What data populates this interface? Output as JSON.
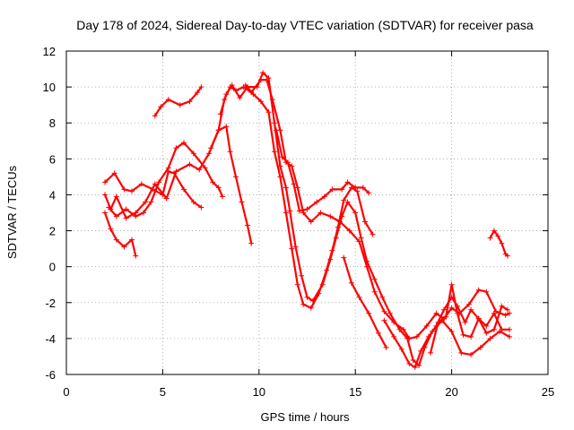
{
  "chart_data": {
    "type": "scatter",
    "title": "Day 178 of 2024, Sidereal Day-to-day VTEC variation (SDTVAR) for receiver pasa",
    "xlabel": "GPS time / hours",
    "ylabel": "SDTVAR / TECUs",
    "xlim": [
      0,
      25
    ],
    "ylim": [
      -6,
      12
    ],
    "xticks": [
      "0",
      "5",
      "10",
      "15",
      "20",
      "25"
    ],
    "yticks": [
      "-6",
      "-4",
      "-2",
      "0",
      "2",
      "4",
      "6",
      "8",
      "10",
      "12"
    ],
    "grid": true,
    "marker": "plus",
    "color": "#ff0000",
    "series": [
      {
        "name": "track-1",
        "points": [
          [
            2.0,
            4.0
          ],
          [
            2.3,
            3.2
          ],
          [
            2.6,
            3.9
          ],
          [
            3.1,
            2.7
          ],
          [
            3.6,
            3.0
          ],
          [
            4.1,
            3.6
          ],
          [
            4.6,
            4.6
          ],
          [
            5.2,
            3.8
          ],
          [
            5.7,
            5.3
          ],
          [
            6.4,
            5.7
          ],
          [
            6.9,
            5.4
          ],
          [
            7.4,
            6.3
          ],
          [
            7.9,
            7.6
          ],
          [
            8.3,
            7.8
          ],
          [
            8.5,
            6.4
          ],
          [
            8.8,
            5.0
          ],
          [
            9.1,
            3.6
          ],
          [
            9.4,
            2.3
          ],
          [
            9.6,
            1.3
          ]
        ]
      },
      {
        "name": "track-2",
        "points": [
          [
            2.0,
            3.0
          ],
          [
            2.3,
            2.1
          ],
          [
            2.6,
            1.5
          ],
          [
            3.0,
            1.1
          ],
          [
            3.4,
            1.5
          ],
          [
            3.6,
            0.6
          ]
        ]
      },
      {
        "name": "track-3",
        "points": [
          [
            2.0,
            4.7
          ],
          [
            2.5,
            5.2
          ],
          [
            3.0,
            4.3
          ],
          [
            3.4,
            4.2
          ],
          [
            3.9,
            4.6
          ],
          [
            4.5,
            4.3
          ],
          [
            5.0,
            4.0
          ],
          [
            5.3,
            5.3
          ],
          [
            5.6,
            5.2
          ],
          [
            6.1,
            4.3
          ],
          [
            6.6,
            3.6
          ],
          [
            7.0,
            3.3
          ]
        ]
      },
      {
        "name": "track-4",
        "points": [
          [
            2.2,
            3.3
          ],
          [
            2.6,
            2.8
          ],
          [
            3.1,
            3.2
          ],
          [
            3.6,
            2.8
          ],
          [
            4.0,
            3.0
          ],
          [
            4.4,
            3.6
          ],
          [
            4.8,
            4.7
          ],
          [
            5.3,
            5.5
          ],
          [
            5.7,
            6.6
          ],
          [
            6.1,
            6.9
          ],
          [
            6.6,
            6.3
          ],
          [
            7.2,
            5.5
          ],
          [
            7.6,
            4.7
          ],
          [
            7.9,
            4.4
          ],
          [
            8.1,
            3.9
          ]
        ]
      },
      {
        "name": "track-5",
        "points": [
          [
            4.6,
            8.4
          ],
          [
            4.9,
            8.9
          ],
          [
            5.3,
            9.3
          ],
          [
            5.9,
            9.0
          ],
          [
            6.4,
            9.2
          ],
          [
            6.8,
            9.7
          ],
          [
            7.0,
            10.0
          ]
        ]
      },
      {
        "name": "track-6",
        "points": [
          [
            7.5,
            6.6
          ],
          [
            7.9,
            7.6
          ],
          [
            8.2,
            9.3
          ],
          [
            8.5,
            10.0
          ],
          [
            8.8,
            9.8
          ],
          [
            9.2,
            10.0
          ],
          [
            9.6,
            9.7
          ],
          [
            10.1,
            10.4
          ],
          [
            10.4,
            10.4
          ],
          [
            10.7,
            9.3
          ],
          [
            11.1,
            7.6
          ],
          [
            11.4,
            5.8
          ],
          [
            11.7,
            5.6
          ],
          [
            12.0,
            4.4
          ],
          [
            12.3,
            3.0
          ],
          [
            12.7,
            2.5
          ],
          [
            13.2,
            3.0
          ],
          [
            13.7,
            2.8
          ],
          [
            14.2,
            2.5
          ],
          [
            14.7,
            2.0
          ],
          [
            15.2,
            1.4
          ],
          [
            15.6,
            0.0
          ],
          [
            16.0,
            -1.4
          ],
          [
            16.5,
            -2.5
          ],
          [
            17.0,
            -3.1
          ],
          [
            17.5,
            -3.5
          ],
          [
            17.8,
            -4.0
          ],
          [
            18.2,
            -3.9
          ],
          [
            18.7,
            -3.3
          ],
          [
            19.2,
            -2.6
          ],
          [
            19.6,
            -2.9
          ],
          [
            20.0,
            -2.3
          ],
          [
            20.4,
            -2.6
          ],
          [
            20.9,
            -2.1
          ],
          [
            21.4,
            -1.3
          ],
          [
            21.8,
            -1.4
          ],
          [
            22.3,
            -2.5
          ],
          [
            22.8,
            -2.7
          ],
          [
            23.0,
            -2.6
          ]
        ]
      },
      {
        "name": "track-7",
        "points": [
          [
            8.0,
            8.5
          ],
          [
            8.3,
            9.6
          ],
          [
            8.6,
            10.1
          ],
          [
            9.0,
            9.4
          ],
          [
            9.4,
            10.0
          ],
          [
            9.9,
            10.0
          ],
          [
            10.2,
            10.8
          ],
          [
            10.5,
            10.5
          ],
          [
            10.8,
            8.0
          ],
          [
            11.1,
            5.6
          ],
          [
            11.4,
            4.4
          ],
          [
            11.6,
            3.1
          ],
          [
            11.9,
            1.1
          ],
          [
            12.2,
            -0.5
          ],
          [
            12.5,
            -1.7
          ],
          [
            12.8,
            -1.9
          ],
          [
            13.3,
            -1.0
          ],
          [
            13.7,
            0.4
          ],
          [
            14.0,
            1.6
          ],
          [
            14.3,
            2.8
          ],
          [
            14.6,
            3.6
          ],
          [
            15.0,
            3.0
          ],
          [
            15.3,
            1.6
          ],
          [
            15.6,
            0.3
          ],
          [
            16.0,
            -0.7
          ],
          [
            16.4,
            -1.7
          ],
          [
            16.8,
            -2.6
          ],
          [
            17.3,
            -3.5
          ],
          [
            17.7,
            -4.0
          ],
          [
            18.0,
            -5.2
          ],
          [
            18.3,
            -5.5
          ],
          [
            18.6,
            -4.5
          ],
          [
            19.0,
            -3.6
          ],
          [
            19.5,
            -3.0
          ],
          [
            20.0,
            -3.6
          ],
          [
            20.5,
            -4.8
          ],
          [
            21.0,
            -4.9
          ],
          [
            21.5,
            -4.5
          ],
          [
            22.0,
            -4.0
          ],
          [
            22.5,
            -3.6
          ],
          [
            23.0,
            -3.9
          ]
        ]
      },
      {
        "name": "track-8",
        "points": [
          [
            9.3,
            10.1
          ],
          [
            9.7,
            9.6
          ],
          [
            10.1,
            9.2
          ],
          [
            10.5,
            8.6
          ],
          [
            10.8,
            6.4
          ],
          [
            11.1,
            5.0
          ],
          [
            11.4,
            3.0
          ],
          [
            11.7,
            1.0
          ],
          [
            12.0,
            -1.0
          ],
          [
            12.3,
            -2.1
          ],
          [
            12.7,
            -2.3
          ],
          [
            13.1,
            -1.5
          ],
          [
            13.5,
            -0.2
          ],
          [
            13.8,
            0.9
          ],
          [
            14.1,
            2.2
          ],
          [
            14.4,
            3.7
          ],
          [
            14.8,
            4.4
          ],
          [
            15.1,
            4.2
          ],
          [
            15.5,
            2.5
          ],
          [
            15.9,
            1.8
          ]
        ]
      },
      {
        "name": "track-9",
        "points": [
          [
            10.9,
            7.6
          ],
          [
            11.2,
            6.1
          ],
          [
            11.5,
            5.8
          ],
          [
            11.8,
            4.6
          ],
          [
            12.1,
            3.1
          ],
          [
            12.5,
            3.2
          ],
          [
            13.0,
            3.6
          ],
          [
            13.4,
            3.9
          ],
          [
            13.8,
            4.3
          ],
          [
            14.3,
            4.3
          ],
          [
            14.6,
            4.7
          ],
          [
            15.0,
            4.4
          ],
          [
            15.4,
            4.4
          ],
          [
            15.7,
            4.1
          ]
        ]
      },
      {
        "name": "track-10",
        "points": [
          [
            14.4,
            0.5
          ],
          [
            14.8,
            -0.9
          ],
          [
            15.2,
            -1.7
          ],
          [
            15.7,
            -2.6
          ],
          [
            16.2,
            -3.7
          ],
          [
            16.6,
            -4.5
          ]
        ]
      },
      {
        "name": "track-11",
        "points": [
          [
            16.5,
            -3.0
          ],
          [
            17.0,
            -3.9
          ],
          [
            17.4,
            -4.6
          ],
          [
            17.8,
            -5.4
          ],
          [
            18.1,
            -5.6
          ],
          [
            18.4,
            -4.7
          ],
          [
            18.8,
            -3.9
          ],
          [
            19.2,
            -3.3
          ],
          [
            19.6,
            -2.4
          ],
          [
            20.0,
            -1.7
          ],
          [
            20.3,
            -2.2
          ],
          [
            20.7,
            -3.1
          ],
          [
            21.0,
            -2.4
          ],
          [
            21.4,
            -2.9
          ],
          [
            21.8,
            -3.7
          ],
          [
            22.2,
            -3.5
          ],
          [
            22.6,
            -2.2
          ],
          [
            22.9,
            -2.4
          ]
        ]
      },
      {
        "name": "track-12",
        "points": [
          [
            18.9,
            -4.8
          ],
          [
            19.3,
            -3.1
          ],
          [
            19.7,
            -2.8
          ],
          [
            20.0,
            -1.0
          ],
          [
            20.3,
            -2.6
          ],
          [
            20.6,
            -3.8
          ],
          [
            21.0,
            -3.9
          ],
          [
            21.4,
            -2.9
          ],
          [
            21.8,
            -3.3
          ],
          [
            22.2,
            -2.6
          ],
          [
            22.6,
            -3.5
          ],
          [
            23.0,
            -3.5
          ]
        ]
      },
      {
        "name": "track-13",
        "points": [
          [
            22.0,
            1.6
          ],
          [
            22.2,
            2.0
          ],
          [
            22.4,
            1.7
          ],
          [
            22.6,
            1.3
          ],
          [
            22.8,
            0.7
          ],
          [
            22.9,
            0.6
          ]
        ]
      }
    ]
  }
}
